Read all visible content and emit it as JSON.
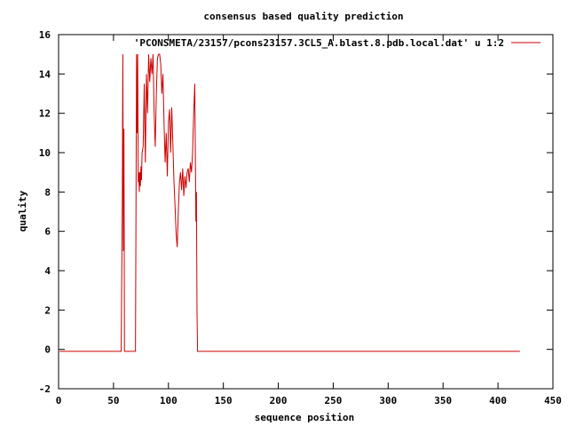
{
  "chart_data": {
    "type": "line",
    "title": "consensus based quality prediction",
    "xlabel": "sequence position",
    "ylabel": "quality",
    "xlim": [
      0,
      450
    ],
    "ylim": [
      -2,
      16
    ],
    "xticks": [
      0,
      50,
      100,
      150,
      200,
      250,
      300,
      350,
      400,
      450
    ],
    "yticks": [
      -2,
      0,
      2,
      4,
      6,
      8,
      10,
      12,
      14,
      16
    ],
    "grid": false,
    "legend_position": "top-right",
    "series": [
      {
        "name": "'PCONSMETA/23157/pcons23157.3CL5_A.blast.8.pdb.local.dat' u 1:2",
        "color": "#cc0000",
        "x": [
          1,
          57,
          58,
          58.5,
          59,
          59.5,
          60,
          61,
          70,
          70.5,
          71,
          71.5,
          72,
          72.5,
          73,
          73.5,
          74,
          74.5,
          75,
          75.5,
          76,
          77,
          78,
          79,
          80,
          81,
          82,
          83,
          84,
          85,
          86,
          87,
          88,
          89,
          90,
          91,
          92,
          93,
          94,
          95,
          96,
          97,
          98,
          99,
          100,
          101,
          102,
          103,
          104,
          105,
          106,
          107,
          108,
          109,
          110,
          111,
          112,
          113,
          114,
          115,
          116,
          117,
          118,
          119,
          120,
          121,
          122,
          123,
          124,
          125,
          125.5,
          126,
          126.5,
          127,
          127.5,
          128,
          420
        ],
        "values": [
          -0.1,
          -0.1,
          7.5,
          15.0,
          5.0,
          11.2,
          -0.1,
          -0.1,
          -0.1,
          7.5,
          15.0,
          11.0,
          15.0,
          8.5,
          9.0,
          8.0,
          9.0,
          8.3,
          9.3,
          8.6,
          10.0,
          10.3,
          13.5,
          9.5,
          14.0,
          12.0,
          15.0,
          13.6,
          14.8,
          14.0,
          15.0,
          12.0,
          10.3,
          13.0,
          14.8,
          15.0,
          15.0,
          14.5,
          13.0,
          14.0,
          11.5,
          9.5,
          11.0,
          8.8,
          11.5,
          12.2,
          10.0,
          12.3,
          10.5,
          8.6,
          7.3,
          5.9,
          5.2,
          7.0,
          8.5,
          9.0,
          8.1,
          9.2,
          7.8,
          8.8,
          8.2,
          9.0,
          9.2,
          8.5,
          9.5,
          9.0,
          10.0,
          12.0,
          13.5,
          6.5,
          8.0,
          2.0,
          -0.1,
          -0.1,
          -0.1,
          -0.1,
          -0.1
        ]
      }
    ]
  }
}
